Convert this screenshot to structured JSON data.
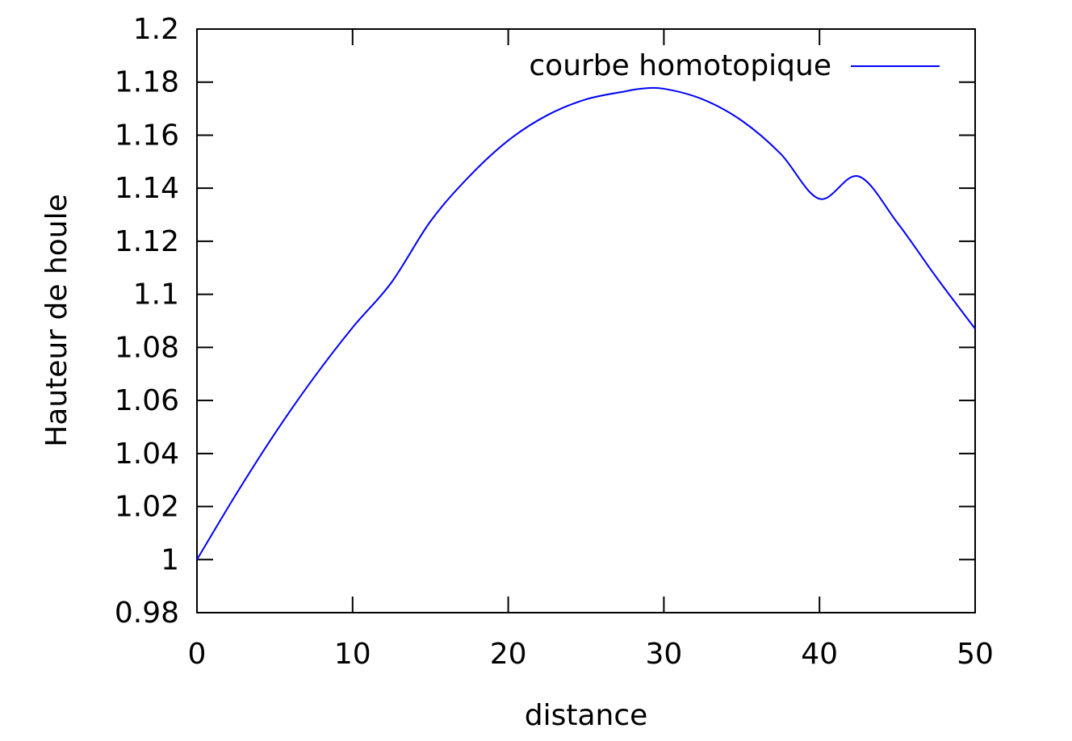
{
  "chart_data": {
    "type": "line",
    "title": "",
    "xlabel": "distance",
    "ylabel": "Hauteur de houle",
    "xlim": [
      0,
      50
    ],
    "ylim": [
      0.98,
      1.2
    ],
    "x_ticks": [
      0,
      10,
      20,
      30,
      40,
      50
    ],
    "x_tick_labels": [
      "0",
      "10",
      "20",
      "30",
      "40",
      "50"
    ],
    "y_ticks": [
      0.98,
      1.0,
      1.02,
      1.04,
      1.06,
      1.08,
      1.1,
      1.12,
      1.14,
      1.16,
      1.18,
      1.2
    ],
    "y_tick_labels": [
      "0.98",
      "1",
      "1.02",
      "1.04",
      "1.06",
      "1.08",
      "1.1",
      "1.12",
      "1.14",
      "1.16",
      "1.18",
      "1.2"
    ],
    "grid": false,
    "legend_position": "top-right",
    "series": [
      {
        "name": "courbe homotopique",
        "color": "#0000ff",
        "x": [
          0,
          2.5,
          5,
          7.5,
          10,
          12.5,
          15,
          17.5,
          20,
          22.5,
          25,
          27.5,
          28.5,
          30,
          32.5,
          35,
          37.5,
          40,
          42.5,
          45,
          47.5,
          50
        ],
        "y": [
          1.0,
          1.0245,
          1.0475,
          1.0685,
          1.0875,
          1.1045,
          1.1275,
          1.1445,
          1.158,
          1.1675,
          1.1735,
          1.1765,
          1.1775,
          1.1775,
          1.1735,
          1.1655,
          1.153,
          1.136,
          1.1445,
          1.127,
          1.1065,
          1.087
        ]
      }
    ]
  }
}
